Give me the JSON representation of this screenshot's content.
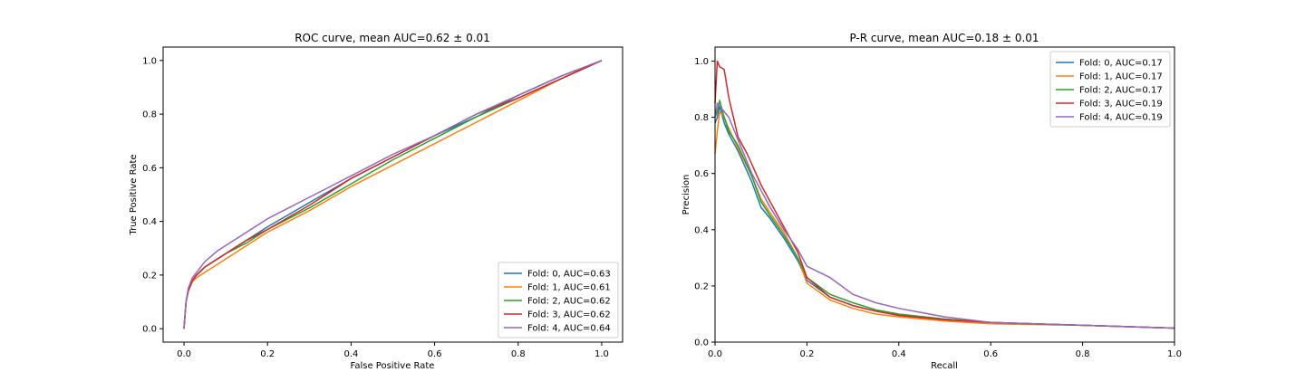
{
  "chart_data": [
    {
      "type": "line",
      "title": "ROC curve, mean AUC=0.62 ± 0.01",
      "xlabel": "False Positive Rate",
      "ylabel": "True Positive Rate",
      "xlim": [
        -0.05,
        1.05
      ],
      "ylim": [
        -0.05,
        1.05
      ],
      "xticks": [
        "0.0",
        "0.2",
        "0.4",
        "0.6",
        "0.8",
        "1.0"
      ],
      "yticks": [
        "0.0",
        "0.2",
        "0.4",
        "0.6",
        "0.8",
        "1.0"
      ],
      "grid": false,
      "legend_loc": "lower-right",
      "series": [
        {
          "name": "Fold: 0, AUC=0.63",
          "color": "#1f77b4",
          "x": [
            0,
            0.005,
            0.01,
            0.02,
            0.03,
            0.05,
            0.08,
            0.1,
            0.15,
            0.2,
            0.3,
            0.4,
            0.5,
            0.6,
            0.7,
            0.8,
            0.9,
            1.0
          ],
          "y": [
            0,
            0.1,
            0.14,
            0.18,
            0.2,
            0.23,
            0.26,
            0.28,
            0.33,
            0.38,
            0.47,
            0.56,
            0.64,
            0.72,
            0.79,
            0.87,
            0.94,
            1.0
          ]
        },
        {
          "name": "Fold: 1, AUC=0.61",
          "color": "#ff7f0e",
          "x": [
            0,
            0.005,
            0.01,
            0.02,
            0.03,
            0.05,
            0.08,
            0.1,
            0.15,
            0.2,
            0.3,
            0.4,
            0.5,
            0.6,
            0.7,
            0.8,
            0.9,
            1.0
          ],
          "y": [
            0,
            0.1,
            0.14,
            0.175,
            0.19,
            0.21,
            0.24,
            0.26,
            0.31,
            0.36,
            0.44,
            0.53,
            0.61,
            0.69,
            0.77,
            0.85,
            0.93,
            1.0
          ]
        },
        {
          "name": "Fold: 2, AUC=0.62",
          "color": "#2ca02c",
          "x": [
            0,
            0.005,
            0.01,
            0.02,
            0.03,
            0.05,
            0.08,
            0.1,
            0.15,
            0.2,
            0.3,
            0.4,
            0.5,
            0.6,
            0.7,
            0.8,
            0.9,
            1.0
          ],
          "y": [
            0,
            0.1,
            0.14,
            0.18,
            0.2,
            0.23,
            0.26,
            0.28,
            0.32,
            0.37,
            0.45,
            0.54,
            0.63,
            0.71,
            0.79,
            0.86,
            0.93,
            1.0
          ]
        },
        {
          "name": "Fold: 3, AUC=0.62",
          "color": "#d62728",
          "x": [
            0,
            0.005,
            0.01,
            0.02,
            0.03,
            0.05,
            0.08,
            0.1,
            0.15,
            0.2,
            0.3,
            0.4,
            0.5,
            0.6,
            0.7,
            0.8,
            0.9,
            1.0
          ],
          "y": [
            0,
            0.1,
            0.14,
            0.18,
            0.2,
            0.23,
            0.26,
            0.28,
            0.33,
            0.37,
            0.46,
            0.56,
            0.64,
            0.72,
            0.8,
            0.86,
            0.93,
            1.0
          ]
        },
        {
          "name": "Fold: 4, AUC=0.64",
          "color": "#9467bd",
          "x": [
            0,
            0.005,
            0.01,
            0.02,
            0.03,
            0.05,
            0.08,
            0.1,
            0.15,
            0.2,
            0.3,
            0.4,
            0.5,
            0.6,
            0.7,
            0.8,
            0.9,
            1.0
          ],
          "y": [
            0,
            0.1,
            0.15,
            0.19,
            0.21,
            0.25,
            0.29,
            0.31,
            0.36,
            0.41,
            0.49,
            0.57,
            0.65,
            0.72,
            0.8,
            0.87,
            0.94,
            1.0
          ]
        }
      ]
    },
    {
      "type": "line",
      "title": "P-R curve, mean AUC=0.18 ± 0.01",
      "xlabel": "Recall",
      "ylabel": "Precision",
      "xlim": [
        0,
        1
      ],
      "ylim": [
        0,
        1.05
      ],
      "xticks": [
        "0.0",
        "0.2",
        "0.4",
        "0.6",
        "0.8",
        "1.0"
      ],
      "yticks": [
        "0.0",
        "0.2",
        "0.4",
        "0.6",
        "0.8",
        "1.0"
      ],
      "grid": false,
      "legend_loc": "upper-right",
      "series": [
        {
          "name": "Fold: 0, AUC=0.17",
          "color": "#1f77b4",
          "x": [
            0.0,
            0.005,
            0.01,
            0.02,
            0.03,
            0.05,
            0.08,
            0.1,
            0.12,
            0.15,
            0.18,
            0.2,
            0.25,
            0.3,
            0.35,
            0.4,
            0.5,
            0.6,
            0.8,
            1.0
          ],
          "y": [
            0.78,
            0.8,
            0.84,
            0.78,
            0.74,
            0.68,
            0.57,
            0.48,
            0.44,
            0.37,
            0.29,
            0.22,
            0.16,
            0.13,
            0.11,
            0.095,
            0.08,
            0.07,
            0.06,
            0.05
          ]
        },
        {
          "name": "Fold: 1, AUC=0.17",
          "color": "#ff7f0e",
          "x": [
            0.0,
            0.005,
            0.01,
            0.02,
            0.03,
            0.05,
            0.08,
            0.1,
            0.12,
            0.15,
            0.18,
            0.2,
            0.25,
            0.3,
            0.35,
            0.4,
            0.5,
            0.6,
            0.8,
            1.0
          ],
          "y": [
            0.67,
            0.75,
            0.82,
            0.8,
            0.76,
            0.69,
            0.59,
            0.51,
            0.46,
            0.39,
            0.3,
            0.21,
            0.15,
            0.12,
            0.1,
            0.09,
            0.075,
            0.065,
            0.06,
            0.05
          ]
        },
        {
          "name": "Fold: 2, AUC=0.17",
          "color": "#2ca02c",
          "x": [
            0.0,
            0.005,
            0.01,
            0.02,
            0.03,
            0.05,
            0.08,
            0.1,
            0.12,
            0.15,
            0.18,
            0.2,
            0.25,
            0.3,
            0.35,
            0.4,
            0.5,
            0.6,
            0.8,
            1.0
          ],
          "y": [
            0.8,
            0.82,
            0.86,
            0.8,
            0.75,
            0.7,
            0.59,
            0.5,
            0.45,
            0.38,
            0.3,
            0.23,
            0.17,
            0.14,
            0.115,
            0.1,
            0.082,
            0.07,
            0.06,
            0.05
          ]
        },
        {
          "name": "Fold: 3, AUC=0.19",
          "color": "#d62728",
          "x": [
            0.0,
            0.005,
            0.01,
            0.02,
            0.03,
            0.04,
            0.05,
            0.07,
            0.1,
            0.12,
            0.15,
            0.18,
            0.2,
            0.25,
            0.3,
            0.35,
            0.4,
            0.5,
            0.6,
            0.8,
            1.0
          ],
          "y": [
            0.85,
            1.0,
            0.98,
            0.97,
            0.87,
            0.8,
            0.73,
            0.67,
            0.56,
            0.5,
            0.41,
            0.32,
            0.23,
            0.16,
            0.13,
            0.11,
            0.095,
            0.08,
            0.07,
            0.06,
            0.05
          ]
        },
        {
          "name": "Fold: 4, AUC=0.19",
          "color": "#9467bd",
          "x": [
            0.0,
            0.005,
            0.01,
            0.02,
            0.03,
            0.05,
            0.08,
            0.1,
            0.12,
            0.15,
            0.18,
            0.2,
            0.25,
            0.3,
            0.35,
            0.4,
            0.5,
            0.6,
            0.8,
            1.0
          ],
          "y": [
            0.8,
            0.85,
            0.84,
            0.82,
            0.8,
            0.72,
            0.6,
            0.54,
            0.48,
            0.4,
            0.33,
            0.27,
            0.23,
            0.17,
            0.14,
            0.12,
            0.09,
            0.07,
            0.06,
            0.05
          ]
        }
      ]
    }
  ]
}
